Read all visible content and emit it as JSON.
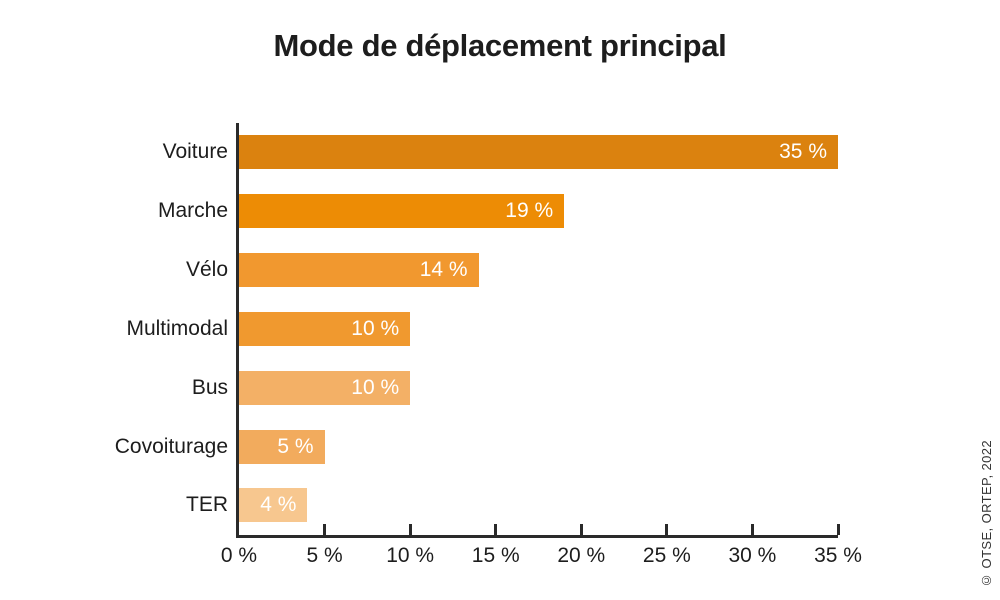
{
  "title": "Mode de déplacement principal",
  "credit": "© OTSE, ORTEP, 2022",
  "chart_data": {
    "type": "bar",
    "orientation": "horizontal",
    "title": "Mode de déplacement principal",
    "categories": [
      "Voiture",
      "Marche",
      "Vélo",
      "Multimodal",
      "Bus",
      "Covoiturage",
      "TER"
    ],
    "values": [
      35,
      19,
      14,
      10,
      10,
      5,
      4
    ],
    "value_labels": [
      "35 %",
      "19 %",
      "14 %",
      "10 %",
      "10 %",
      "5 %",
      "4 %"
    ],
    "bar_colors": [
      "#DB820F",
      "#ED8C05",
      "#F1982F",
      "#F0992F",
      "#F3B066",
      "#F2AB5D",
      "#F7C78F"
    ],
    "xlabel": "",
    "ylabel": "",
    "xlim": [
      0,
      35
    ],
    "x_ticks": [
      0,
      5,
      10,
      15,
      20,
      25,
      30,
      35
    ],
    "x_tick_labels": [
      "0 %",
      "5 %",
      "10 %",
      "15 %",
      "20 %",
      "25 %",
      "30 %",
      "35 %"
    ],
    "grid": false,
    "legend": false,
    "value_label_color": "#ffffff",
    "axis_color": "#2a2a2a"
  }
}
